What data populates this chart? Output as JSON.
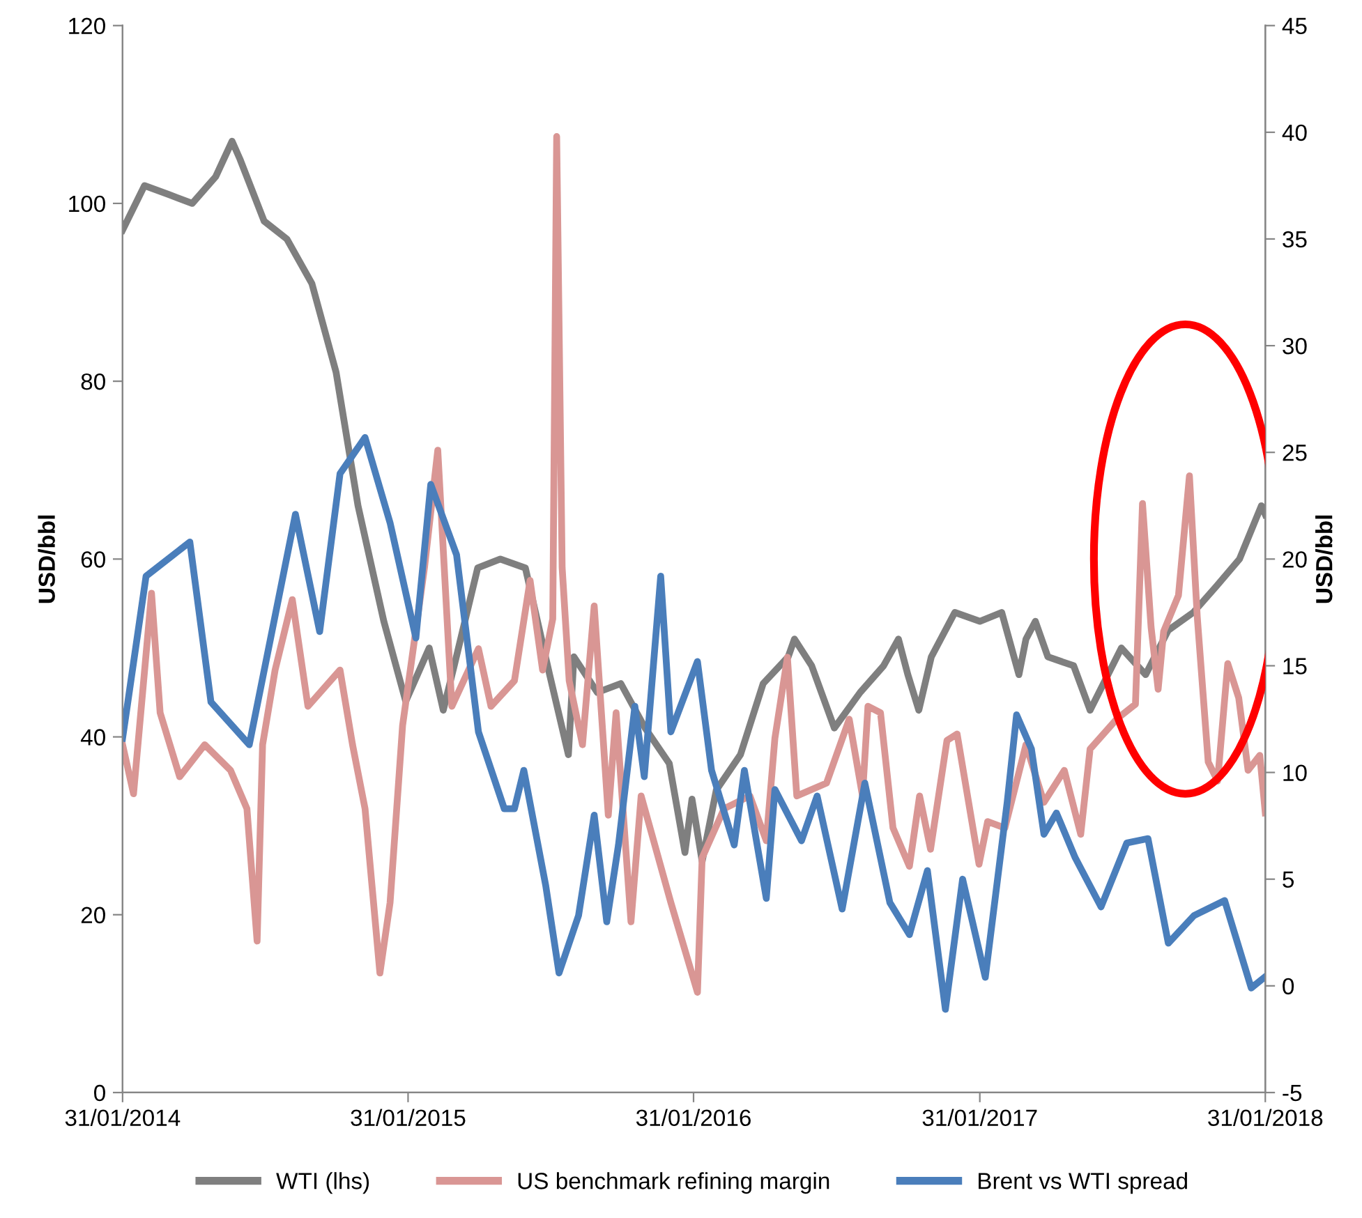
{
  "chart_data": {
    "type": "line",
    "ylabel": "USD/bbl",
    "y2label": "USD/bbl",
    "xlim": [
      "2014-01-31",
      "2018-01-31"
    ],
    "xticks": [
      {
        "value": "2014-01-31",
        "label": "31/01/2014"
      },
      {
        "value": "2015-01-31",
        "label": "31/01/2015"
      },
      {
        "value": "2016-01-31",
        "label": "31/01/2016"
      },
      {
        "value": "2017-01-31",
        "label": "31/01/2017"
      },
      {
        "value": "2018-01-31",
        "label": "31/01/2018"
      }
    ],
    "ylim": [
      0,
      120
    ],
    "yticks": [
      0,
      20,
      40,
      60,
      80,
      100,
      120
    ],
    "y2lim": [
      -5,
      45
    ],
    "y2ticks": [
      -5,
      0,
      5,
      10,
      15,
      20,
      25,
      30,
      35,
      40,
      45
    ],
    "grid": false,
    "legend": "bottom",
    "marker": "none",
    "line_style": "solid",
    "series": [
      {
        "name": "WTI (lhs)",
        "color": "#7f7f7f",
        "x": [
          "2014-01-31",
          "2014-02-28",
          "2014-03-31",
          "2014-04-30",
          "2014-05-30",
          "2014-06-20",
          "2014-06-30",
          "2014-07-31",
          "2014-08-29",
          "2014-09-30",
          "2014-10-31",
          "2014-11-28",
          "2014-12-31",
          "2015-01-28",
          "2015-02-27",
          "2015-03-17",
          "2015-03-31",
          "2015-04-30",
          "2015-05-29",
          "2015-06-30",
          "2015-07-31",
          "2015-08-24",
          "2015-08-31",
          "2015-09-30",
          "2015-10-30",
          "2015-11-30",
          "2015-12-31",
          "2016-01-20",
          "2016-01-29",
          "2016-02-11",
          "2016-02-29",
          "2016-03-31",
          "2016-04-29",
          "2016-05-31",
          "2016-06-08",
          "2016-06-30",
          "2016-07-29",
          "2016-08-31",
          "2016-09-30",
          "2016-10-19",
          "2016-10-31",
          "2016-11-14",
          "2016-11-30",
          "2016-12-30",
          "2017-01-31",
          "2017-02-28",
          "2017-03-22",
          "2017-03-31",
          "2017-04-12",
          "2017-04-28",
          "2017-05-31",
          "2017-06-21",
          "2017-07-31",
          "2017-08-31",
          "2017-09-29",
          "2017-10-31",
          "2017-11-30",
          "2017-12-29",
          "2018-01-26",
          "2018-01-31"
        ],
        "values": [
          97,
          102,
          101,
          100,
          103,
          107,
          105,
          98,
          96,
          91,
          81,
          66,
          53,
          44,
          50,
          43,
          48,
          59,
          60,
          59,
          47,
          38,
          49,
          45,
          46,
          41,
          37,
          27,
          33,
          26,
          34,
          38,
          46,
          49,
          51,
          48,
          41,
          45,
          48,
          51,
          47,
          43,
          49,
          54,
          53,
          54,
          47,
          51,
          53,
          49,
          48,
          43,
          50,
          47,
          52,
          54,
          57,
          60,
          66,
          65
        ]
      },
      {
        "name": "US benchmark refining margin",
        "color": "#d99694",
        "axis": "y2",
        "x": [
          "2014-01-31",
          "2014-02-14",
          "2014-03-09",
          "2014-03-20",
          "2014-04-14",
          "2014-05-16",
          "2014-06-18",
          "2014-07-09",
          "2014-07-22",
          "2014-07-29",
          "2014-08-14",
          "2014-09-05",
          "2014-09-25",
          "2014-11-05",
          "2014-11-21",
          "2014-12-07",
          "2014-12-26",
          "2015-01-08",
          "2015-01-24",
          "2015-02-21",
          "2015-03-10",
          "2015-03-28",
          "2015-05-01",
          "2015-05-17",
          "2015-06-16",
          "2015-07-06",
          "2015-07-22",
          "2015-08-04",
          "2015-08-09",
          "2015-08-16",
          "2015-08-25",
          "2015-09-11",
          "2015-09-26",
          "2015-10-14",
          "2015-10-24",
          "2015-11-12",
          "2015-11-25",
          "2016-01-02",
          "2016-02-05",
          "2016-02-11",
          "2016-03-10",
          "2016-04-12",
          "2016-05-03",
          "2016-05-14",
          "2016-05-30",
          "2016-06-11",
          "2016-07-19",
          "2016-08-17",
          "2016-09-03",
          "2016-09-10",
          "2016-09-26",
          "2016-10-12",
          "2016-11-02",
          "2016-11-15",
          "2016-11-29",
          "2016-12-20",
          "2017-01-02",
          "2017-01-30",
          "2017-02-10",
          "2017-03-04",
          "2017-03-31",
          "2017-04-23",
          "2017-05-19",
          "2017-06-09",
          "2017-06-21",
          "2017-07-25",
          "2017-08-18",
          "2017-08-27",
          "2017-09-07",
          "2017-09-16",
          "2017-09-23",
          "2017-10-12",
          "2017-10-26",
          "2017-11-05",
          "2017-11-19",
          "2017-12-01",
          "2017-12-14",
          "2017-12-28",
          "2018-01-09",
          "2018-01-24",
          "2018-01-31"
        ],
        "values": [
          11.3,
          9,
          18.4,
          12.8,
          9.8,
          11.3,
          10.1,
          8.3,
          2.1,
          11.3,
          14.8,
          18.1,
          13.1,
          14.8,
          11.3,
          8.3,
          0.6,
          3.9,
          12.2,
          19.6,
          25.1,
          13.1,
          15.8,
          13.1,
          14.3,
          19,
          14.8,
          17.2,
          39.8,
          19.6,
          14.3,
          11.3,
          17.8,
          8,
          12.8,
          3,
          8.9,
          3.9,
          -0.3,
          6,
          8.3,
          8.9,
          6.8,
          11.6,
          15.4,
          8.9,
          9.5,
          12.5,
          8.9,
          13.1,
          12.8,
          7.4,
          5.6,
          8.9,
          6.4,
          11.5,
          11.8,
          5.7,
          7.7,
          7.4,
          11.3,
          8.6,
          10.1,
          7.1,
          11.1,
          12.5,
          13.2,
          22.6,
          16.8,
          13.9,
          16.6,
          18.3,
          23.9,
          17.3,
          10.5,
          9.6,
          15.1,
          13.5,
          10.1,
          10.8,
          8.1
        ]
      },
      {
        "name": "Brent vs WTI spread",
        "color": "#4a7ebb",
        "axis": "y2",
        "x": [
          "2014-01-31",
          "2014-03-02",
          "2014-04-27",
          "2014-05-24",
          "2014-07-12",
          "2014-09-09",
          "2014-10-10",
          "2014-11-05",
          "2014-12-07",
          "2015-01-08",
          "2015-02-10",
          "2015-03-01",
          "2015-04-03",
          "2015-05-01",
          "2015-06-03",
          "2015-06-16",
          "2015-06-28",
          "2015-07-26",
          "2015-08-12",
          "2015-09-06",
          "2015-09-26",
          "2015-10-12",
          "2015-10-27",
          "2015-11-17",
          "2015-11-29",
          "2015-12-20",
          "2016-01-02",
          "2016-02-05",
          "2016-02-23",
          "2016-03-23",
          "2016-04-05",
          "2016-05-03",
          "2016-05-14",
          "2016-06-17",
          "2016-07-07",
          "2016-08-08",
          "2016-09-06",
          "2016-10-08",
          "2016-11-02",
          "2016-11-25",
          "2016-12-18",
          "2017-01-09",
          "2017-02-07",
          "2017-03-07",
          "2017-03-19",
          "2017-04-07",
          "2017-04-23",
          "2017-05-09",
          "2017-06-02",
          "2017-07-05",
          "2017-08-07",
          "2017-09-03",
          "2017-09-29",
          "2017-11-01",
          "2017-12-10",
          "2018-01-13",
          "2018-01-30"
        ],
        "values": [
          11.6,
          19.2,
          20.8,
          13.3,
          11.3,
          22.1,
          16.6,
          24,
          25.7,
          21.7,
          16.3,
          23.5,
          20.2,
          11.9,
          8.3,
          8.3,
          10.1,
          4.7,
          0.6,
          3.3,
          8,
          3,
          6.6,
          13.1,
          9.8,
          19.2,
          11.9,
          15.2,
          10.1,
          6.6,
          10.1,
          4.1,
          9.2,
          6.8,
          8.9,
          3.6,
          9.5,
          3.9,
          2.4,
          5.4,
          -1.1,
          5,
          0.4,
          8.6,
          12.7,
          11.1,
          7.1,
          8.1,
          6,
          3.7,
          6.7,
          6.9,
          2,
          3.3,
          4,
          -0.1,
          0.4
        ]
      }
    ]
  }
}
